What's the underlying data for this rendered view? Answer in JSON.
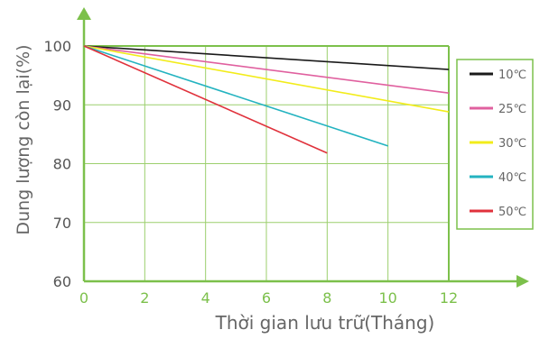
{
  "chart_data": {
    "type": "line",
    "ylabel": "Dung lượng còn lại(%)",
    "xlabel": "Thời gian lưu trữ(Tháng)",
    "x_ticks": [
      "0",
      "2",
      "4",
      "6",
      "8",
      "10",
      "12"
    ],
    "y_ticks": [
      "60",
      "70",
      "80",
      "90",
      "100"
    ],
    "xlim": [
      0,
      12
    ],
    "ylim": [
      60,
      100
    ],
    "grid": true,
    "legend_position": "right",
    "series": [
      {
        "name": "10℃",
        "color": "#1a1a1a",
        "x": [
          0,
          12
        ],
        "y": [
          100,
          96
        ]
      },
      {
        "name": "25℃",
        "color": "#e0609f",
        "x": [
          0,
          12
        ],
        "y": [
          100,
          92
        ]
      },
      {
        "name": "30℃",
        "color": "#f2ec1a",
        "x": [
          0,
          12
        ],
        "y": [
          100,
          88.8
        ]
      },
      {
        "name": "40℃",
        "color": "#23b3c0",
        "x": [
          0,
          10
        ],
        "y": [
          100,
          83
        ]
      },
      {
        "name": "50℃",
        "color": "#e0323c",
        "x": [
          0,
          8
        ],
        "y": [
          100,
          81.8
        ]
      }
    ],
    "axis_color": "#7cc04b",
    "grid_color": "#9ccf6e"
  }
}
